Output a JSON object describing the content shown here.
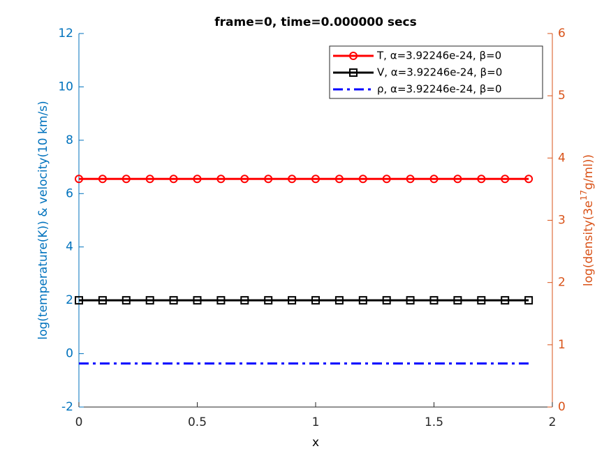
{
  "chart_data": {
    "type": "line",
    "title": "frame=0, time=0.000000 secs",
    "xlabel": "x",
    "ylabel": "log(temperature(K)) & velocity(10 km/s)",
    "y2label": [
      "log(density(3e",
      "17",
      "g/ml))"
    ],
    "x": [
      0,
      0.1,
      0.2,
      0.3,
      0.4,
      0.5,
      0.6,
      0.7,
      0.8,
      0.9,
      1,
      1.1,
      1.2,
      1.3,
      1.4,
      1.5,
      1.6,
      1.7,
      1.8,
      1.9
    ],
    "xlim": [
      0,
      2
    ],
    "xticks": [
      0,
      0.5,
      1,
      1.5,
      2
    ],
    "ylim": [
      -2,
      12
    ],
    "yticks": [
      -2,
      0,
      2,
      4,
      6,
      8,
      10,
      12
    ],
    "y2lim": [
      0,
      6
    ],
    "y2ticks": [
      0,
      1,
      2,
      3,
      4,
      5,
      6
    ],
    "ycolor": "#0072bd",
    "y2color": "#d95319",
    "legend": "upper right",
    "series": [
      {
        "name": "T, α=3.92246e-24, β=0",
        "color": "#ff0000",
        "marker": "circle",
        "values": [
          6.55,
          6.55,
          6.55,
          6.55,
          6.55,
          6.55,
          6.55,
          6.55,
          6.55,
          6.55,
          6.55,
          6.55,
          6.55,
          6.55,
          6.55,
          6.55,
          6.55,
          6.55,
          6.55,
          6.55
        ]
      },
      {
        "name": "V, α=3.92246e-24, β=0",
        "color": "#000000",
        "marker": "square",
        "values": [
          2,
          2,
          2,
          2,
          2,
          2,
          2,
          2,
          2,
          2,
          2,
          2,
          2,
          2,
          2,
          2,
          2,
          2,
          2,
          2
        ]
      },
      {
        "name": "ρ, α=3.92246e-24, β=0",
        "color": "#0000ff",
        "dash": "dashdot",
        "axis": "y2",
        "values": [
          0.7,
          0.7,
          0.7,
          0.7,
          0.7,
          0.7,
          0.7,
          0.7,
          0.7,
          0.7,
          0.7,
          0.7,
          0.7,
          0.7,
          0.7,
          0.7,
          0.7,
          0.7,
          0.7,
          0.7
        ]
      }
    ]
  }
}
